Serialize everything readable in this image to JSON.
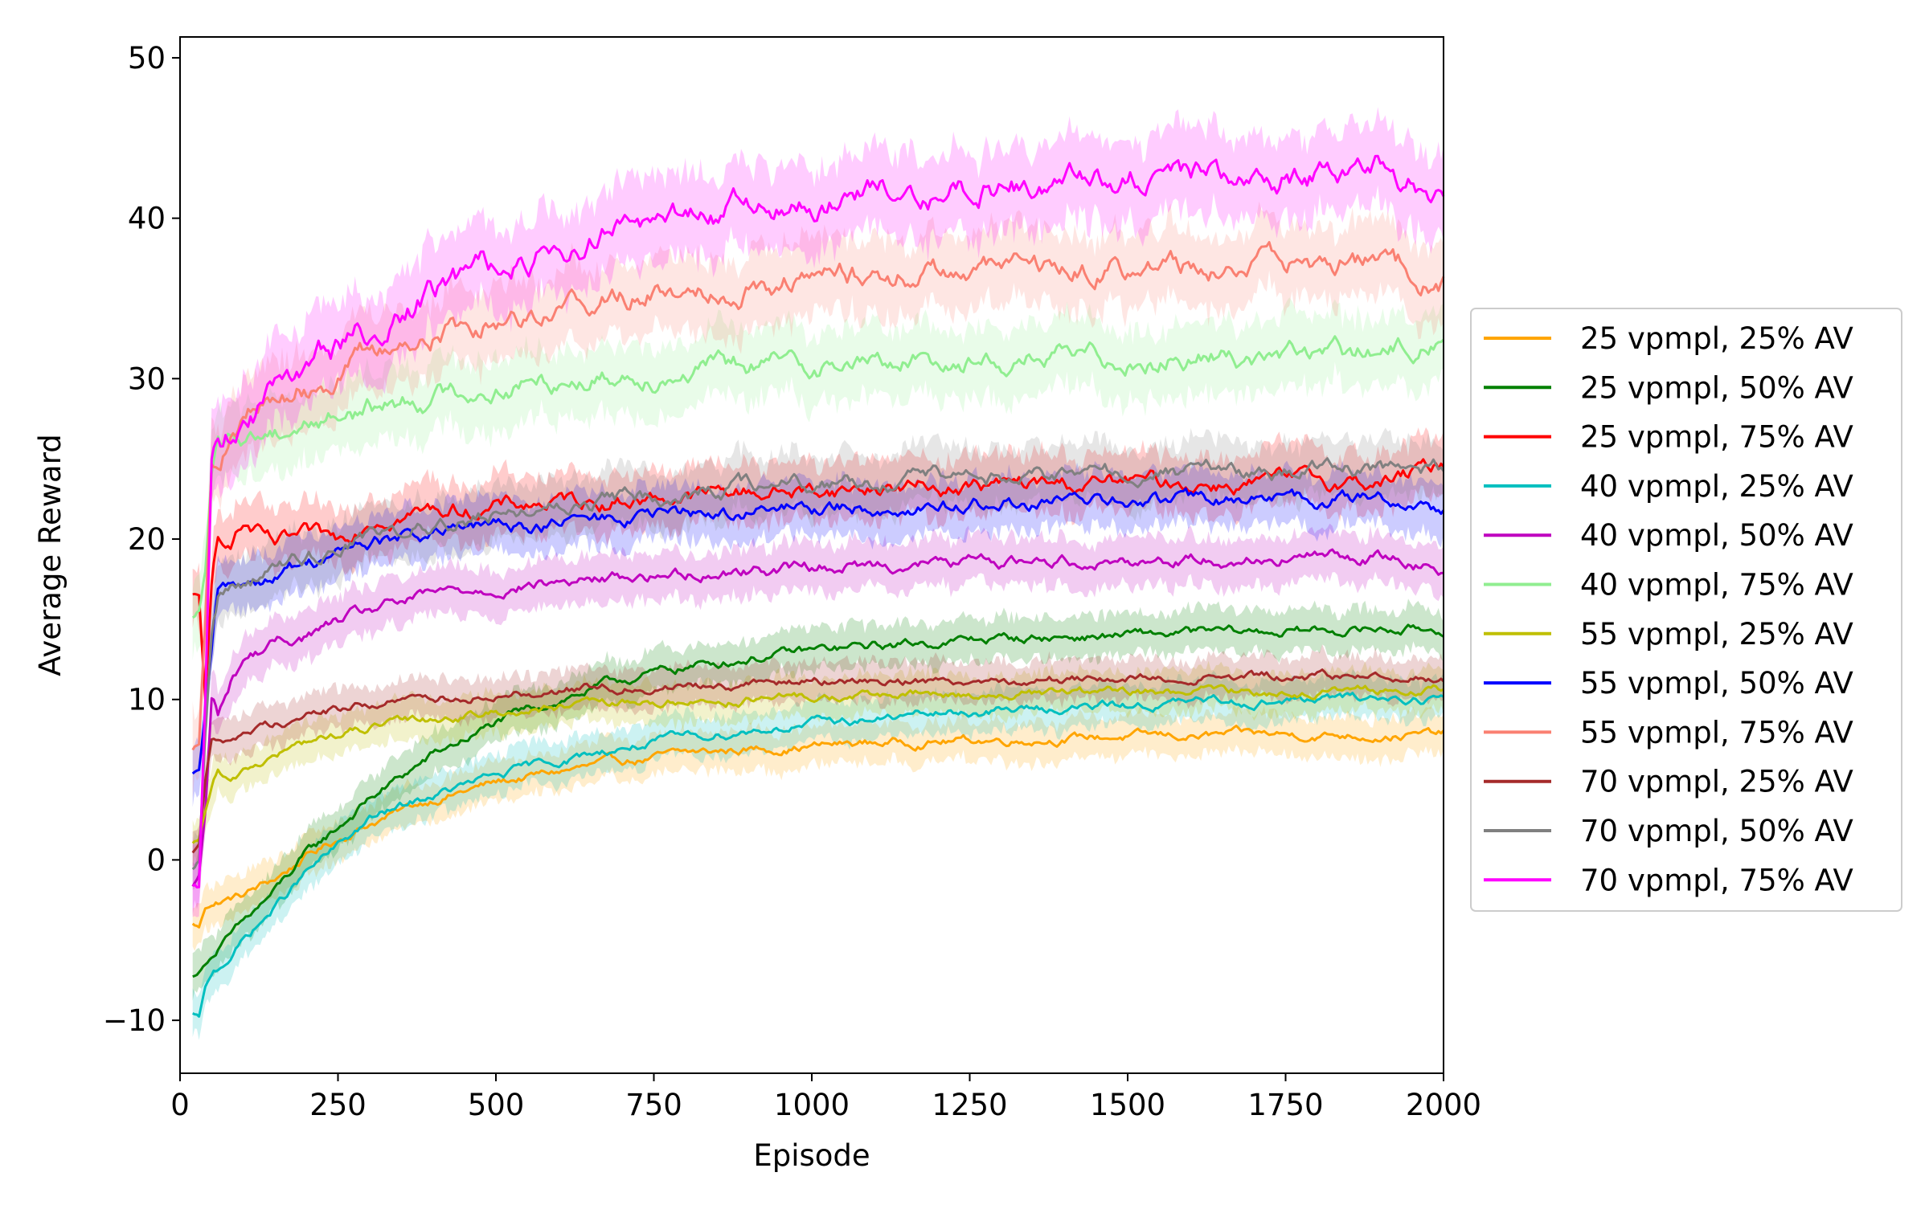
{
  "chart_data": {
    "type": "line",
    "title": "",
    "xlabel": "Episode",
    "ylabel": "Average Reward",
    "xlim": [
      0,
      2000
    ],
    "ylim": [
      -13.3,
      51.3
    ],
    "xticks": [
      0,
      250,
      500,
      750,
      1000,
      1250,
      1500,
      1750,
      2000
    ],
    "yticks": [
      -10,
      0,
      10,
      20,
      30,
      40,
      50
    ],
    "xtick_labels": [
      "0",
      "250",
      "500",
      "750",
      "1000",
      "1250",
      "1500",
      "1750",
      "2000"
    ],
    "ytick_labels": [
      "−10",
      "0",
      "10",
      "20",
      "30",
      "40",
      "50"
    ],
    "grid": false,
    "legend_position": "center-right (outside plot)",
    "shaded_band": "mean ± spread",
    "x": [
      20,
      30,
      40,
      50,
      60,
      80,
      100,
      150,
      200,
      250,
      300,
      400,
      500,
      600,
      700,
      800,
      900,
      1000,
      1100,
      1200,
      1300,
      1400,
      1500,
      1600,
      1700,
      1800,
      1900,
      2000
    ],
    "series": [
      {
        "name": "25 vpmpl, 25% AV",
        "color": "#ffa500",
        "values": [
          -4,
          -4.2,
          -3,
          -2.8,
          -2.6,
          -2.4,
          -2.2,
          -1.2,
          0.2,
          1.3,
          2.3,
          3.8,
          4.8,
          5.5,
          6.1,
          6.6,
          6.9,
          7.1,
          7.3,
          7.4,
          7.5,
          7.6,
          7.7,
          7.7,
          7.8,
          7.8,
          7.8,
          7.8
        ]
      },
      {
        "name": "25 vpmpl, 50% AV",
        "color": "#008000",
        "values": [
          -7.3,
          -7,
          -6.5,
          -6,
          -5.5,
          -4.8,
          -4,
          -2,
          0.3,
          2,
          3.8,
          6.5,
          8.5,
          10,
          11.2,
          12,
          12.6,
          13,
          13.3,
          13.6,
          13.8,
          13.9,
          14,
          14.1,
          14.2,
          14.3,
          14.4,
          14.4
        ]
      },
      {
        "name": "25 vpmpl, 75% AV",
        "color": "#ff0000",
        "values": [
          16.5,
          16.4,
          10,
          17,
          19.5,
          20,
          21,
          19.5,
          20,
          19.8,
          21.5,
          21.8,
          22,
          22.3,
          22.5,
          22.7,
          23,
          23,
          23.2,
          23.3,
          23.3,
          23.4,
          23.5,
          23.5,
          23.5,
          23.6,
          23.6,
          24.5
        ]
      },
      {
        "name": "40 vpmpl, 25% AV",
        "color": "#00bfbf",
        "values": [
          -9.6,
          -9.8,
          -8,
          -7.2,
          -6.8,
          -6,
          -5,
          -3,
          -0.8,
          0.8,
          2.5,
          4,
          5.2,
          6.2,
          7,
          7.6,
          8.1,
          8.5,
          8.8,
          9.1,
          9.3,
          9.5,
          9.6,
          9.8,
          9.9,
          10,
          10.1,
          10.1
        ]
      },
      {
        "name": "40 vpmpl, 50% AV",
        "color": "#bf00bf",
        "values": [
          -1.7,
          -1,
          3,
          10,
          9,
          11,
          12.5,
          13.5,
          14,
          14.8,
          15.5,
          16.5,
          17,
          17.3,
          17.6,
          17.9,
          18.1,
          18.3,
          18.4,
          18.5,
          18.6,
          18.7,
          18.7,
          18.8,
          18.8,
          18.9,
          18.9,
          18.2
        ]
      },
      {
        "name": "40 vpmpl, 75% AV",
        "color": "#90ee90",
        "values": [
          15,
          15.5,
          18,
          24,
          25.5,
          25.8,
          26.2,
          26.8,
          27.3,
          27.8,
          28.2,
          29,
          29.5,
          30,
          30.3,
          30.6,
          30.8,
          31,
          31,
          31.2,
          31.2,
          31.3,
          31.3,
          31.4,
          31.4,
          31.5,
          31.5,
          32.5
        ]
      },
      {
        "name": "55 vpmpl, 25% AV",
        "color": "#bfbf00",
        "values": [
          1,
          1.2,
          3,
          4.5,
          5.5,
          4.5,
          5.5,
          6.5,
          7.3,
          7.8,
          8.2,
          8.8,
          9.2,
          9.5,
          9.7,
          9.9,
          10,
          10.1,
          10.2,
          10.3,
          10.3,
          10.4,
          10.4,
          10.5,
          10.5,
          10.5,
          10.5,
          10.6
        ]
      },
      {
        "name": "55 vpmpl, 50% AV",
        "color": "#0000ff",
        "values": [
          5.3,
          5.5,
          9,
          13,
          16.5,
          17,
          17.3,
          17.8,
          18.5,
          19.2,
          19.8,
          20.3,
          20.7,
          21,
          21.3,
          21.5,
          21.7,
          21.9,
          22,
          22.1,
          22.2,
          22.3,
          22.3,
          22.4,
          22.4,
          22.5,
          22.5,
          21.9
        ]
      },
      {
        "name": "55 vpmpl, 75% AV",
        "color": "#fa8072",
        "values": [
          7,
          7.5,
          15,
          25,
          25.5,
          26.5,
          27.5,
          28.5,
          29.5,
          30.5,
          31.5,
          32.8,
          33.8,
          34.6,
          35.2,
          35.7,
          36,
          36.3,
          36.5,
          36.7,
          36.8,
          36.9,
          37,
          37.1,
          37.2,
          37.2,
          37.3,
          36
        ]
      },
      {
        "name": "70 vpmpl, 25% AV",
        "color": "#a52a2a",
        "values": [
          0.5,
          1,
          5,
          7.5,
          7.2,
          7.5,
          8,
          8.5,
          9,
          9.4,
          9.7,
          10.1,
          10.4,
          10.6,
          10.8,
          10.9,
          11,
          11.1,
          11.2,
          11.2,
          11.3,
          11.3,
          11.3,
          11.4,
          11.4,
          11.4,
          11.4,
          11.3
        ]
      },
      {
        "name": "70 vpmpl, 50% AV",
        "color": "#808080",
        "values": [
          -0.5,
          0,
          8,
          14,
          16.5,
          17,
          17.4,
          18,
          18.8,
          19.5,
          20.2,
          21,
          21.6,
          22.1,
          22.5,
          22.9,
          23.2,
          23.4,
          23.6,
          23.8,
          23.9,
          24,
          24.1,
          24.2,
          24.3,
          24.3,
          24.4,
          24.4
        ]
      },
      {
        "name": "70 vpmpl, 75% AV",
        "color": "#ff00ff",
        "values": [
          -1.5,
          -1.8,
          10,
          25,
          26.2,
          26.5,
          27.5,
          29,
          30.8,
          31.8,
          33,
          35.3,
          36.8,
          38,
          39.2,
          40,
          40.6,
          41,
          41.4,
          41.7,
          42,
          42.3,
          42.5,
          42.8,
          43,
          43.1,
          43.2,
          41.5
        ]
      }
    ]
  }
}
